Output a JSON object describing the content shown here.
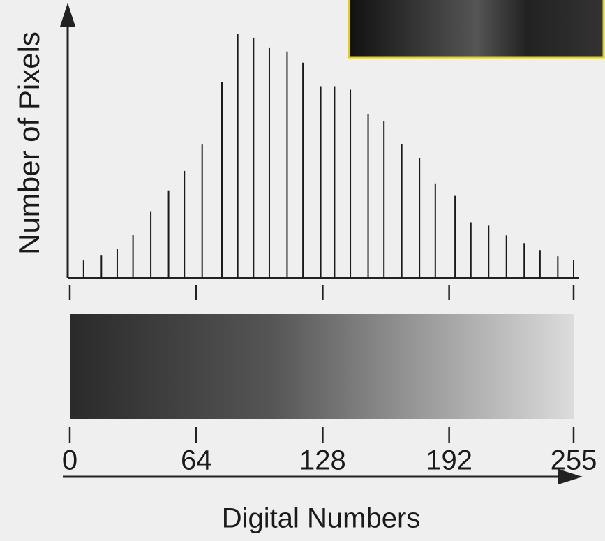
{
  "chart_data": {
    "type": "bar",
    "y_label": "Number of Pixels",
    "x_label": "Digital Numbers",
    "x": [
      7,
      16,
      24,
      32,
      41,
      50,
      58,
      67,
      77,
      85,
      93,
      101,
      110,
      118,
      127,
      134,
      142,
      151,
      159,
      168,
      177,
      185,
      195,
      203,
      212,
      221,
      230,
      238,
      247,
      255
    ],
    "values": [
      25,
      32,
      42,
      62,
      96,
      126,
      154,
      192,
      282,
      351,
      346,
      331,
      326,
      310,
      276,
      276,
      271,
      236,
      226,
      193,
      173,
      136,
      118,
      80,
      75,
      61,
      50,
      40,
      31,
      26
    ],
    "color": "#1a1a1a",
    "xlim": [
      0,
      255
    ],
    "xticks": [
      0,
      64,
      128,
      192,
      255
    ],
    "ylim": [
      0,
      360
    ]
  }
}
